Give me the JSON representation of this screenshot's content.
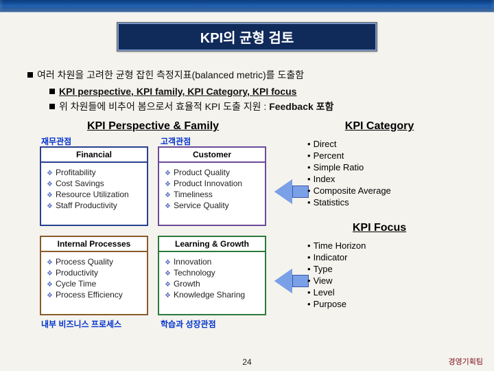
{
  "title": "KPI의 균형 검토",
  "bullets": {
    "main": "여러 차원을 고려한 균형 잡힌 측정지표(balanced metric)를 도출함",
    "sub1": "KPI perspective, KPI family, KPI Category, KPI focus",
    "sub2_pre": "위 차원들에 비추어 봄으로서 효율적 KPI 도출 지원 : ",
    "sub2_bold": "Feedback 포함"
  },
  "left": {
    "title": "KPI Perspective & Family",
    "labels": {
      "fin": "재무관점",
      "cus": "고객관점",
      "ip": "내부 비즈니스 프로세스",
      "lg": "학습과 성장관점"
    },
    "quads": {
      "tl": {
        "hdr": "Financial",
        "items": [
          "Profitability",
          "Cost Savings",
          "Resource Utilization",
          "Staff Productivity"
        ]
      },
      "tr": {
        "hdr": "Customer",
        "items": [
          "Product Quality",
          "Product Innovation",
          "Timeliness",
          "Service Quality"
        ]
      },
      "bl": {
        "hdr": "Internal Processes",
        "items": [
          "Process Quality",
          "Productivity",
          "Cycle Time",
          "Process Efficiency"
        ]
      },
      "br": {
        "hdr": "Learning & Growth",
        "items": [
          "Innovation",
          "Technology",
          "Growth",
          "Knowledge Sharing"
        ]
      }
    }
  },
  "right": {
    "cat_title": "KPI Category",
    "cat_items": [
      "Direct",
      "Percent",
      "Simple Ratio",
      "Index",
      "Composite Average",
      "Statistics"
    ],
    "focus_title": "KPI Focus",
    "focus_items": [
      "Time Horizon",
      "Indicator",
      "Type",
      "View",
      "Level",
      "Purpose"
    ]
  },
  "page_num": "24",
  "footer_right": "경영기획팀",
  "colors": {
    "title_bg": "#102a5a",
    "arrow_fill": "#7aa0e8",
    "label_blue": "#0033cc"
  }
}
